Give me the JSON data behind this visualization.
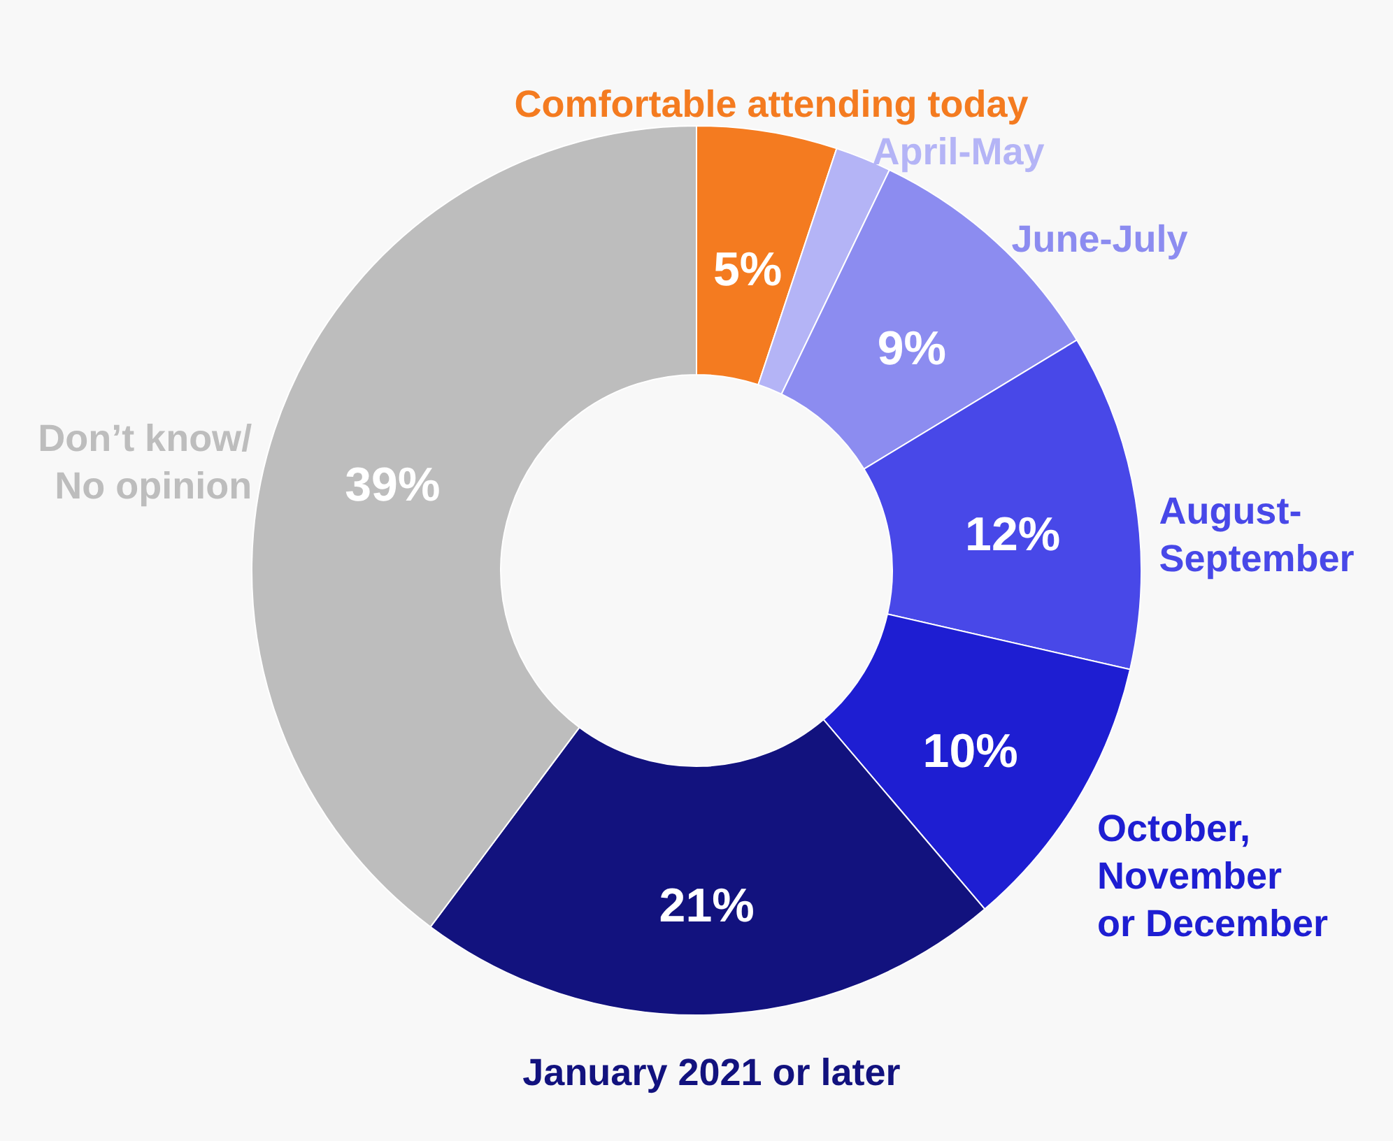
{
  "chart_data": {
    "type": "donut",
    "categories": [
      "Comfortable attending today",
      "April-May",
      "June-July",
      "August-\nSeptember",
      "October,\nNovember\nor December",
      "January 2021 or later",
      "Don’t know/\nNo opinion"
    ],
    "values": [
      5,
      2,
      9,
      12,
      10,
      21,
      39
    ],
    "value_labels": [
      "5%",
      null,
      "9%",
      "12%",
      "10%",
      "21%",
      "39%"
    ],
    "colors": [
      "#f47b20",
      "#b4b4f6",
      "#8c8cf0",
      "#4848e8",
      "#1e1ed2",
      "#12127e",
      "#bdbdbd"
    ],
    "legend": false
  }
}
